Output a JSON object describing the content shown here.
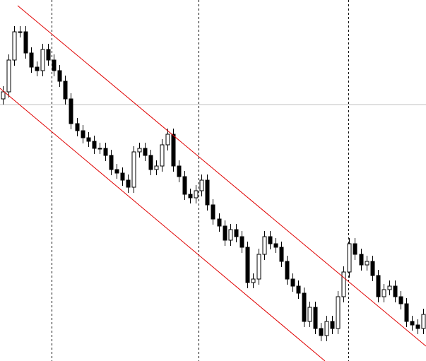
{
  "chart_data": {
    "type": "candlestick",
    "open": [
      371,
      381,
      426,
      466,
      466,
      436,
      416,
      411,
      441,
      426,
      411,
      396,
      371,
      336,
      326,
      316,
      311,
      301,
      301,
      291,
      271,
      266,
      256,
      246,
      296,
      301,
      291,
      271,
      276,
      306,
      321,
      276,
      261,
      236,
      231,
      241,
      256,
      221,
      201,
      191,
      171,
      186,
      176,
      161,
      111,
      116,
      151,
      176,
      166,
      161,
      141,
      116,
      106,
      96,
      56,
      76,
      46,
      36,
      56,
      46,
      91,
      126,
      166,
      151,
      136,
      141,
      121,
      91,
      101,
      106,
      91,
      81,
      56,
      51,
      46
    ],
    "high": [
      389,
      434,
      474,
      474,
      474,
      444,
      424,
      449,
      449,
      434,
      419,
      404,
      379,
      344,
      334,
      324,
      319,
      309,
      309,
      299,
      279,
      274,
      264,
      304,
      309,
      309,
      299,
      284,
      314,
      329,
      329,
      284,
      269,
      244,
      249,
      264,
      264,
      229,
      209,
      199,
      194,
      194,
      184,
      169,
      124,
      159,
      184,
      184,
      174,
      169,
      149,
      124,
      114,
      104,
      84,
      84,
      54,
      64,
      64,
      99,
      134,
      174,
      174,
      159,
      149,
      149,
      129,
      109,
      114,
      114,
      99,
      89,
      64,
      59,
      74
    ],
    "low": [
      363,
      373,
      418,
      458,
      428,
      408,
      403,
      403,
      418,
      403,
      388,
      363,
      328,
      318,
      308,
      303,
      293,
      293,
      283,
      263,
      258,
      248,
      238,
      238,
      288,
      283,
      263,
      263,
      268,
      298,
      268,
      253,
      228,
      223,
      223,
      233,
      213,
      193,
      183,
      163,
      163,
      168,
      153,
      103,
      103,
      108,
      143,
      158,
      153,
      133,
      108,
      98,
      88,
      48,
      48,
      38,
      28,
      28,
      38,
      38,
      83,
      118,
      143,
      128,
      128,
      113,
      83,
      83,
      93,
      83,
      73,
      48,
      43,
      38,
      38
    ],
    "close": [
      381,
      426,
      466,
      466,
      436,
      416,
      411,
      441,
      426,
      411,
      396,
      371,
      336,
      326,
      316,
      311,
      301,
      301,
      291,
      271,
      266,
      256,
      246,
      296,
      301,
      291,
      271,
      276,
      306,
      321,
      276,
      261,
      236,
      231,
      241,
      256,
      221,
      201,
      191,
      171,
      186,
      176,
      161,
      111,
      116,
      151,
      176,
      166,
      161,
      141,
      116,
      106,
      96,
      56,
      76,
      46,
      36,
      56,
      46,
      91,
      126,
      166,
      151,
      136,
      141,
      121,
      91,
      101,
      106,
      91,
      81,
      56,
      51,
      46,
      66
    ],
    "ylim": [
      0,
      511
    ],
    "bull_color": "#ffffff",
    "bear_color": "#000000",
    "wick_color": "#000000"
  }
}
